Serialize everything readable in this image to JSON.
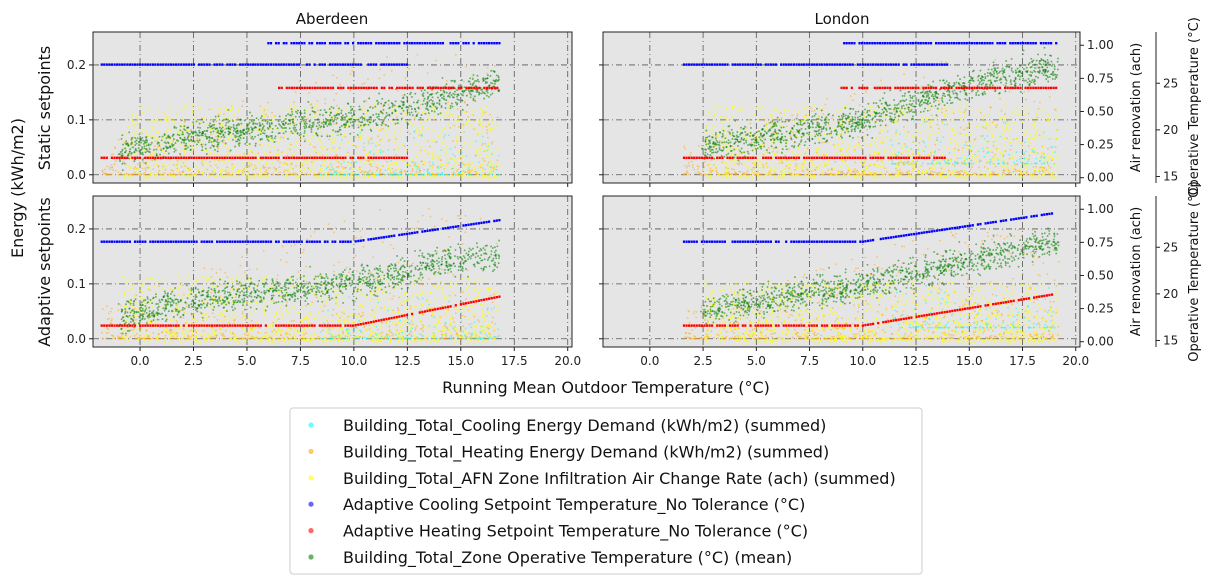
{
  "chart_data": {
    "type": "scatter",
    "figure": {
      "supxlabel": "Running Mean Outdoor Temperature (°C)",
      "supylabel": "Energy (kWh/m2)",
      "col_titles": [
        "Aberdeen",
        "London"
      ],
      "row_labels": [
        "Static setpoints",
        "Adaptive setpoints"
      ],
      "secondary_axis_labels": {
        "air": "Air renovation (ach)",
        "operative": "Operative Temperature (°C)"
      }
    },
    "axes": {
      "x": {
        "lim": [
          -2.2,
          20.2
        ],
        "ticks": [
          0.0,
          2.5,
          5.0,
          7.5,
          10.0,
          12.5,
          15.0,
          17.5,
          20.0
        ]
      },
      "energy": {
        "lim": [
          -0.015,
          0.26
        ],
        "ticks": [
          0.0,
          0.1,
          0.2
        ]
      },
      "air": {
        "lim": [
          -0.04,
          1.1
        ],
        "ticks": [
          "0.00",
          "0.25",
          "0.50",
          "0.75",
          "1.00"
        ]
      },
      "operative": {
        "lim": [
          14.3,
          30.5
        ],
        "ticks": [
          15,
          20,
          25
        ]
      },
      "grid": true,
      "gridstyle": "dash-dot"
    },
    "series": [
      {
        "name": "Building_Total_Cooling Energy Demand (kWh/m2) (summed)",
        "color": "#00ffff",
        "axis": "energy",
        "kind": "scatter"
      },
      {
        "name": "Building_Total_Heating Energy Demand (kWh/m2) (summed)",
        "color": "#ffa500",
        "axis": "energy",
        "kind": "scatter"
      },
      {
        "name": "Building_Total_AFN Zone Infiltration Air Change Rate (ach) (summed)",
        "color": "#ffff00",
        "axis": "air",
        "kind": "scatter"
      },
      {
        "name": "Adaptive Cooling Setpoint Temperature_No Tolerance (°C)",
        "color": "#0000ff",
        "axis": "operative",
        "kind": "setpoint"
      },
      {
        "name": "Adaptive Heating Setpoint Temperature_No Tolerance (°C)",
        "color": "#ff0000",
        "axis": "operative",
        "kind": "setpoint"
      },
      {
        "name": "Building_Total_Zone Operative Temperature (°C) (mean)",
        "color": "#008000",
        "axis": "operative",
        "kind": "scatter"
      }
    ],
    "panels": [
      {
        "row": "Static setpoints",
        "city": "Aberdeen",
        "x_range": [
          -1.8,
          16.8
        ],
        "setpoints": {
          "cooling": [
            [
              -1.8,
              27.0
            ],
            [
              12.5,
              27.0
            ],
            [
              6.0,
              29.3
            ],
            [
              16.8,
              29.3
            ]
          ],
          "heating": [
            [
              -1.8,
              17.0
            ],
            [
              12.5,
              17.0
            ],
            [
              6.5,
              24.5
            ],
            [
              16.8,
              24.5
            ]
          ]
        },
        "operative_mean": [
          [
            -1.0,
            17.5
          ],
          [
            3.0,
            19.5
          ],
          [
            7.0,
            20.5
          ],
          [
            11.0,
            21.5
          ],
          [
            14.0,
            23.5
          ],
          [
            16.5,
            25.0
          ]
        ],
        "cooling_energy_typical": 0.0,
        "heating_energy_max": 0.22,
        "air_change_max": 0.55
      },
      {
        "row": "Static setpoints",
        "city": "London",
        "x_range": [
          1.6,
          19.2
        ],
        "setpoints": {
          "cooling": [
            [
              1.6,
              27.0
            ],
            [
              14.0,
              27.0
            ],
            [
              9.0,
              29.3
            ],
            [
              19.1,
              29.3
            ]
          ],
          "heating": [
            [
              1.6,
              17.0
            ],
            [
              14.0,
              17.0
            ],
            [
              9.0,
              24.5
            ],
            [
              19.1,
              24.5
            ]
          ]
        },
        "operative_mean": [
          [
            2.0,
            18.0
          ],
          [
            6.0,
            19.5
          ],
          [
            10.0,
            21.0
          ],
          [
            13.0,
            23.5
          ],
          [
            16.0,
            25.5
          ],
          [
            18.5,
            26.5
          ]
        ],
        "cooling_energy_typical": 0.02,
        "heating_energy_max": 0.21,
        "air_change_max": 0.55
      },
      {
        "row": "Adaptive setpoints",
        "city": "Aberdeen",
        "x_range": [
          -1.8,
          16.8
        ],
        "setpoints": {
          "cooling": [
            [
              -1.8,
              25.6
            ],
            [
              10.0,
              25.6
            ],
            [
              16.8,
              27.9
            ]
          ],
          "heating": [
            [
              -1.8,
              16.6
            ],
            [
              10.0,
              16.6
            ],
            [
              16.8,
              19.7
            ]
          ]
        },
        "operative_mean": [
          [
            -1.0,
            17.5
          ],
          [
            3.0,
            19.5
          ],
          [
            7.0,
            20.5
          ],
          [
            11.0,
            21.5
          ],
          [
            14.0,
            23.5
          ],
          [
            16.5,
            24.0
          ]
        ],
        "cooling_energy_typical": 0.0,
        "heating_energy_max": 0.24,
        "air_change_max": 0.5
      },
      {
        "row": "Adaptive setpoints",
        "city": "London",
        "x_range": [
          1.6,
          19.2
        ],
        "setpoints": {
          "cooling": [
            [
              1.6,
              25.6
            ],
            [
              10.0,
              25.6
            ],
            [
              19.1,
              28.7
            ]
          ],
          "heating": [
            [
              1.6,
              16.6
            ],
            [
              10.0,
              16.6
            ],
            [
              19.1,
              20.0
            ]
          ]
        },
        "operative_mean": [
          [
            2.0,
            18.0
          ],
          [
            6.0,
            19.5
          ],
          [
            10.0,
            21.0
          ],
          [
            13.0,
            22.5
          ],
          [
            16.0,
            24.0
          ],
          [
            18.5,
            25.5
          ]
        ],
        "cooling_energy_typical": 0.02,
        "heating_energy_max": 0.2,
        "air_change_max": 0.45
      }
    ]
  }
}
